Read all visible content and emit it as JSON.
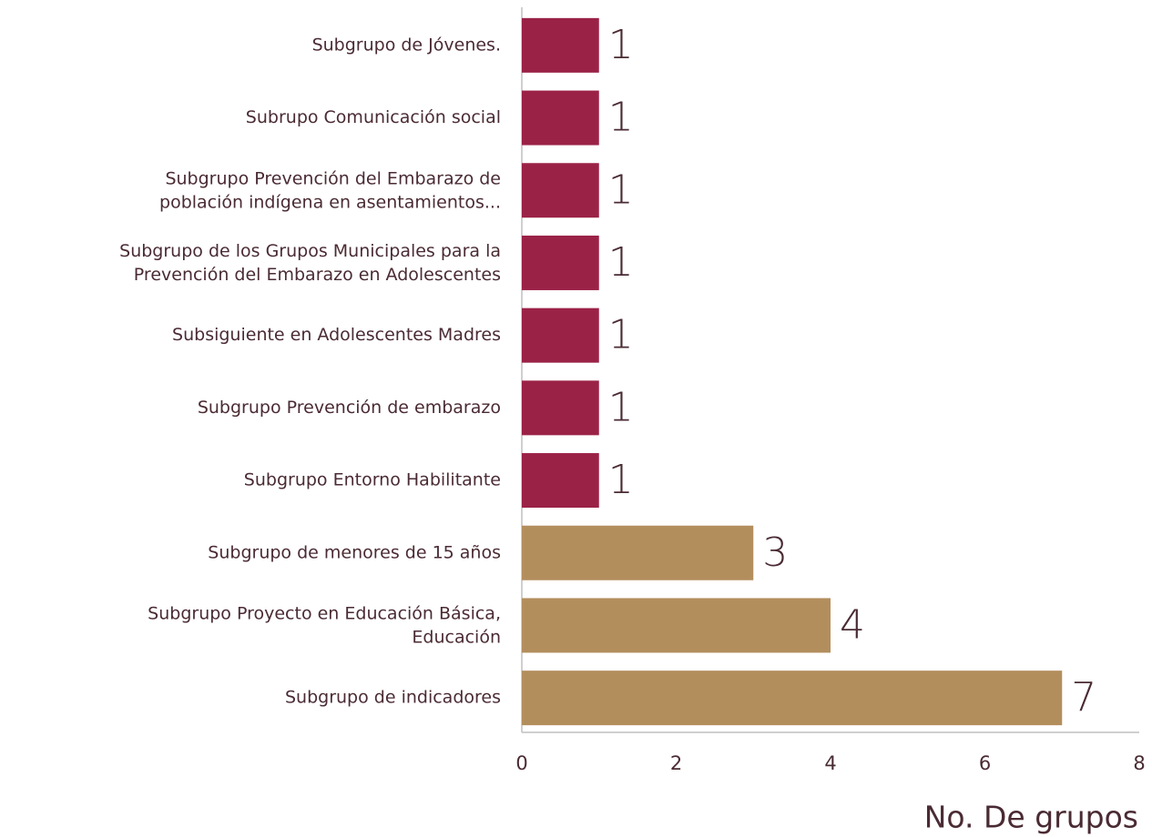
{
  "chart_data": {
    "type": "bar",
    "orientation": "horizontal",
    "categories": [
      "Subgrupo de Jóvenes.",
      "Subrupo Comunicación social",
      "Subgrupo Prevención del Embarazo de\npoblación indígena en asentamientos...",
      "Subgrupo de los Grupos Municipales para la\nPrevención del Embarazo en Adolescentes",
      "Subsiguiente en Adolescentes Madres",
      "Subgrupo Prevención de embarazo",
      "Subgrupo Entorno Habilitante",
      "Subgrupo de menores de 15 años",
      "Subgrupo Proyecto en Educación Básica,\nEducación",
      "Subgrupo de indicadores"
    ],
    "values": [
      1,
      1,
      1,
      1,
      1,
      1,
      1,
      3,
      4,
      7
    ],
    "colors": [
      "#9b2247",
      "#9b2247",
      "#9b2247",
      "#9b2247",
      "#9b2247",
      "#9b2247",
      "#9b2247",
      "#b38e5d",
      "#b38e5d",
      "#b38e5d"
    ],
    "xlim": [
      0,
      8
    ],
    "xticks": [
      0,
      2,
      4,
      6,
      8
    ],
    "x_label": "No. De grupos",
    "grid": false
  }
}
